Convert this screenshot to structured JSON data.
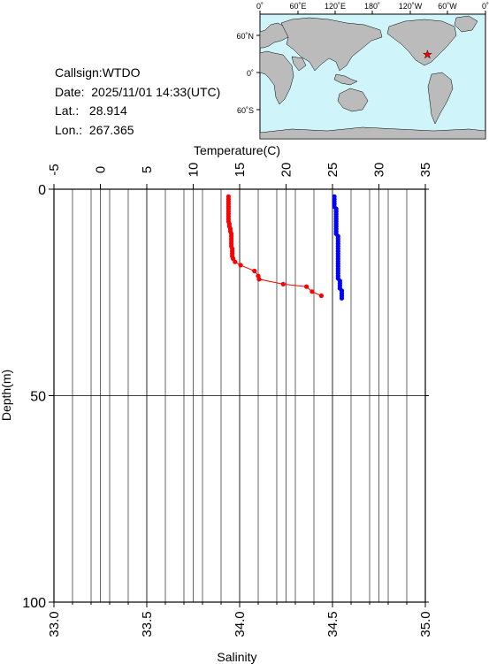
{
  "info": {
    "callsign": "Callsign:WTDO",
    "date": "Date:  2025/11/01 14:33(UTC)",
    "lat": "Lat.:   28.914",
    "lon": "Lon.:  267.365"
  },
  "map": {
    "top_labels": [
      "0˚",
      "60˚E",
      "120˚E",
      "180˚",
      "120˚W",
      "60˚W",
      "0˚"
    ],
    "left_labels": [
      "60˚N",
      "0˚",
      "60˚S"
    ],
    "ocean_color": "#cff4f9",
    "land_color": "#bbbbbb",
    "marker": {
      "name": "star-icon",
      "color": "#ff0000",
      "lat": 28.914,
      "lon": 267.365
    }
  },
  "chart_data": {
    "type": "scatter",
    "top_axis": {
      "label": "Temperature(C)",
      "ticks": [
        "-5",
        "0",
        "5",
        "10",
        "15",
        "20",
        "25",
        "30",
        "35"
      ],
      "range": [
        -5,
        35
      ]
    },
    "bottom_axis": {
      "label": "Salinity",
      "ticks": [
        "33.0",
        "33.5",
        "34.0",
        "34.5",
        "35.0"
      ],
      "range": [
        33.0,
        35.0
      ]
    },
    "left_axis": {
      "label": "Depth(m)",
      "ticks": [
        "0",
        "50",
        "100"
      ],
      "range": [
        0,
        100
      ],
      "inverted": true
    },
    "grid": true,
    "series": [
      {
        "measure": "temperature",
        "color": "#ff0000",
        "points": [
          [
            13.8,
            1.8
          ],
          [
            13.8,
            2.4
          ],
          [
            13.8,
            3.0
          ],
          [
            13.8,
            3.6
          ],
          [
            13.8,
            4.2
          ],
          [
            13.8,
            4.8
          ],
          [
            13.8,
            5.4
          ],
          [
            13.8,
            6.0
          ],
          [
            13.8,
            6.6
          ],
          [
            13.8,
            7.2
          ],
          [
            13.8,
            7.8
          ],
          [
            13.9,
            8.4
          ],
          [
            13.9,
            9.0
          ],
          [
            14.0,
            9.6
          ],
          [
            14.0,
            10.2
          ],
          [
            14.1,
            10.8
          ],
          [
            14.1,
            11.4
          ],
          [
            14.1,
            12.0
          ],
          [
            14.1,
            12.6
          ],
          [
            14.1,
            13.2
          ],
          [
            14.1,
            13.8
          ],
          [
            14.2,
            14.4
          ],
          [
            14.2,
            15.0
          ],
          [
            14.2,
            15.6
          ],
          [
            14.2,
            16.2
          ],
          [
            14.3,
            16.8
          ],
          [
            14.5,
            17.6
          ],
          [
            15.1,
            18.4
          ],
          [
            16.6,
            19.8
          ],
          [
            17.0,
            21.0
          ],
          [
            17.1,
            21.8
          ],
          [
            19.7,
            23.0
          ],
          [
            22.2,
            23.6
          ],
          [
            22.8,
            24.8
          ],
          [
            23.8,
            25.8
          ]
        ]
      },
      {
        "measure": "salinity",
        "color": "#0000ff",
        "points": [
          [
            34.51,
            1.8
          ],
          [
            34.51,
            2.4
          ],
          [
            34.51,
            3.0
          ],
          [
            34.51,
            3.6
          ],
          [
            34.51,
            4.2
          ],
          [
            34.52,
            4.8
          ],
          [
            34.52,
            5.4
          ],
          [
            34.52,
            6.0
          ],
          [
            34.52,
            6.6
          ],
          [
            34.52,
            7.2
          ],
          [
            34.52,
            7.8
          ],
          [
            34.52,
            8.4
          ],
          [
            34.52,
            9.0
          ],
          [
            34.52,
            9.6
          ],
          [
            34.52,
            10.2
          ],
          [
            34.52,
            10.8
          ],
          [
            34.53,
            11.4
          ],
          [
            34.53,
            12.0
          ],
          [
            34.53,
            12.6
          ],
          [
            34.53,
            13.2
          ],
          [
            34.53,
            13.8
          ],
          [
            34.53,
            14.4
          ],
          [
            34.53,
            15.0
          ],
          [
            34.53,
            15.6
          ],
          [
            34.53,
            16.2
          ],
          [
            34.53,
            16.8
          ],
          [
            34.53,
            17.4
          ],
          [
            34.53,
            18.0
          ],
          [
            34.53,
            18.6
          ],
          [
            34.53,
            19.2
          ],
          [
            34.53,
            19.8
          ],
          [
            34.53,
            20.4
          ],
          [
            34.53,
            21.0
          ],
          [
            34.53,
            21.6
          ],
          [
            34.54,
            22.2
          ],
          [
            34.54,
            22.8
          ],
          [
            34.54,
            23.4
          ],
          [
            34.54,
            24.0
          ],
          [
            34.55,
            24.6
          ],
          [
            34.55,
            25.2
          ],
          [
            34.55,
            25.8
          ],
          [
            34.55,
            26.4
          ]
        ]
      }
    ]
  }
}
